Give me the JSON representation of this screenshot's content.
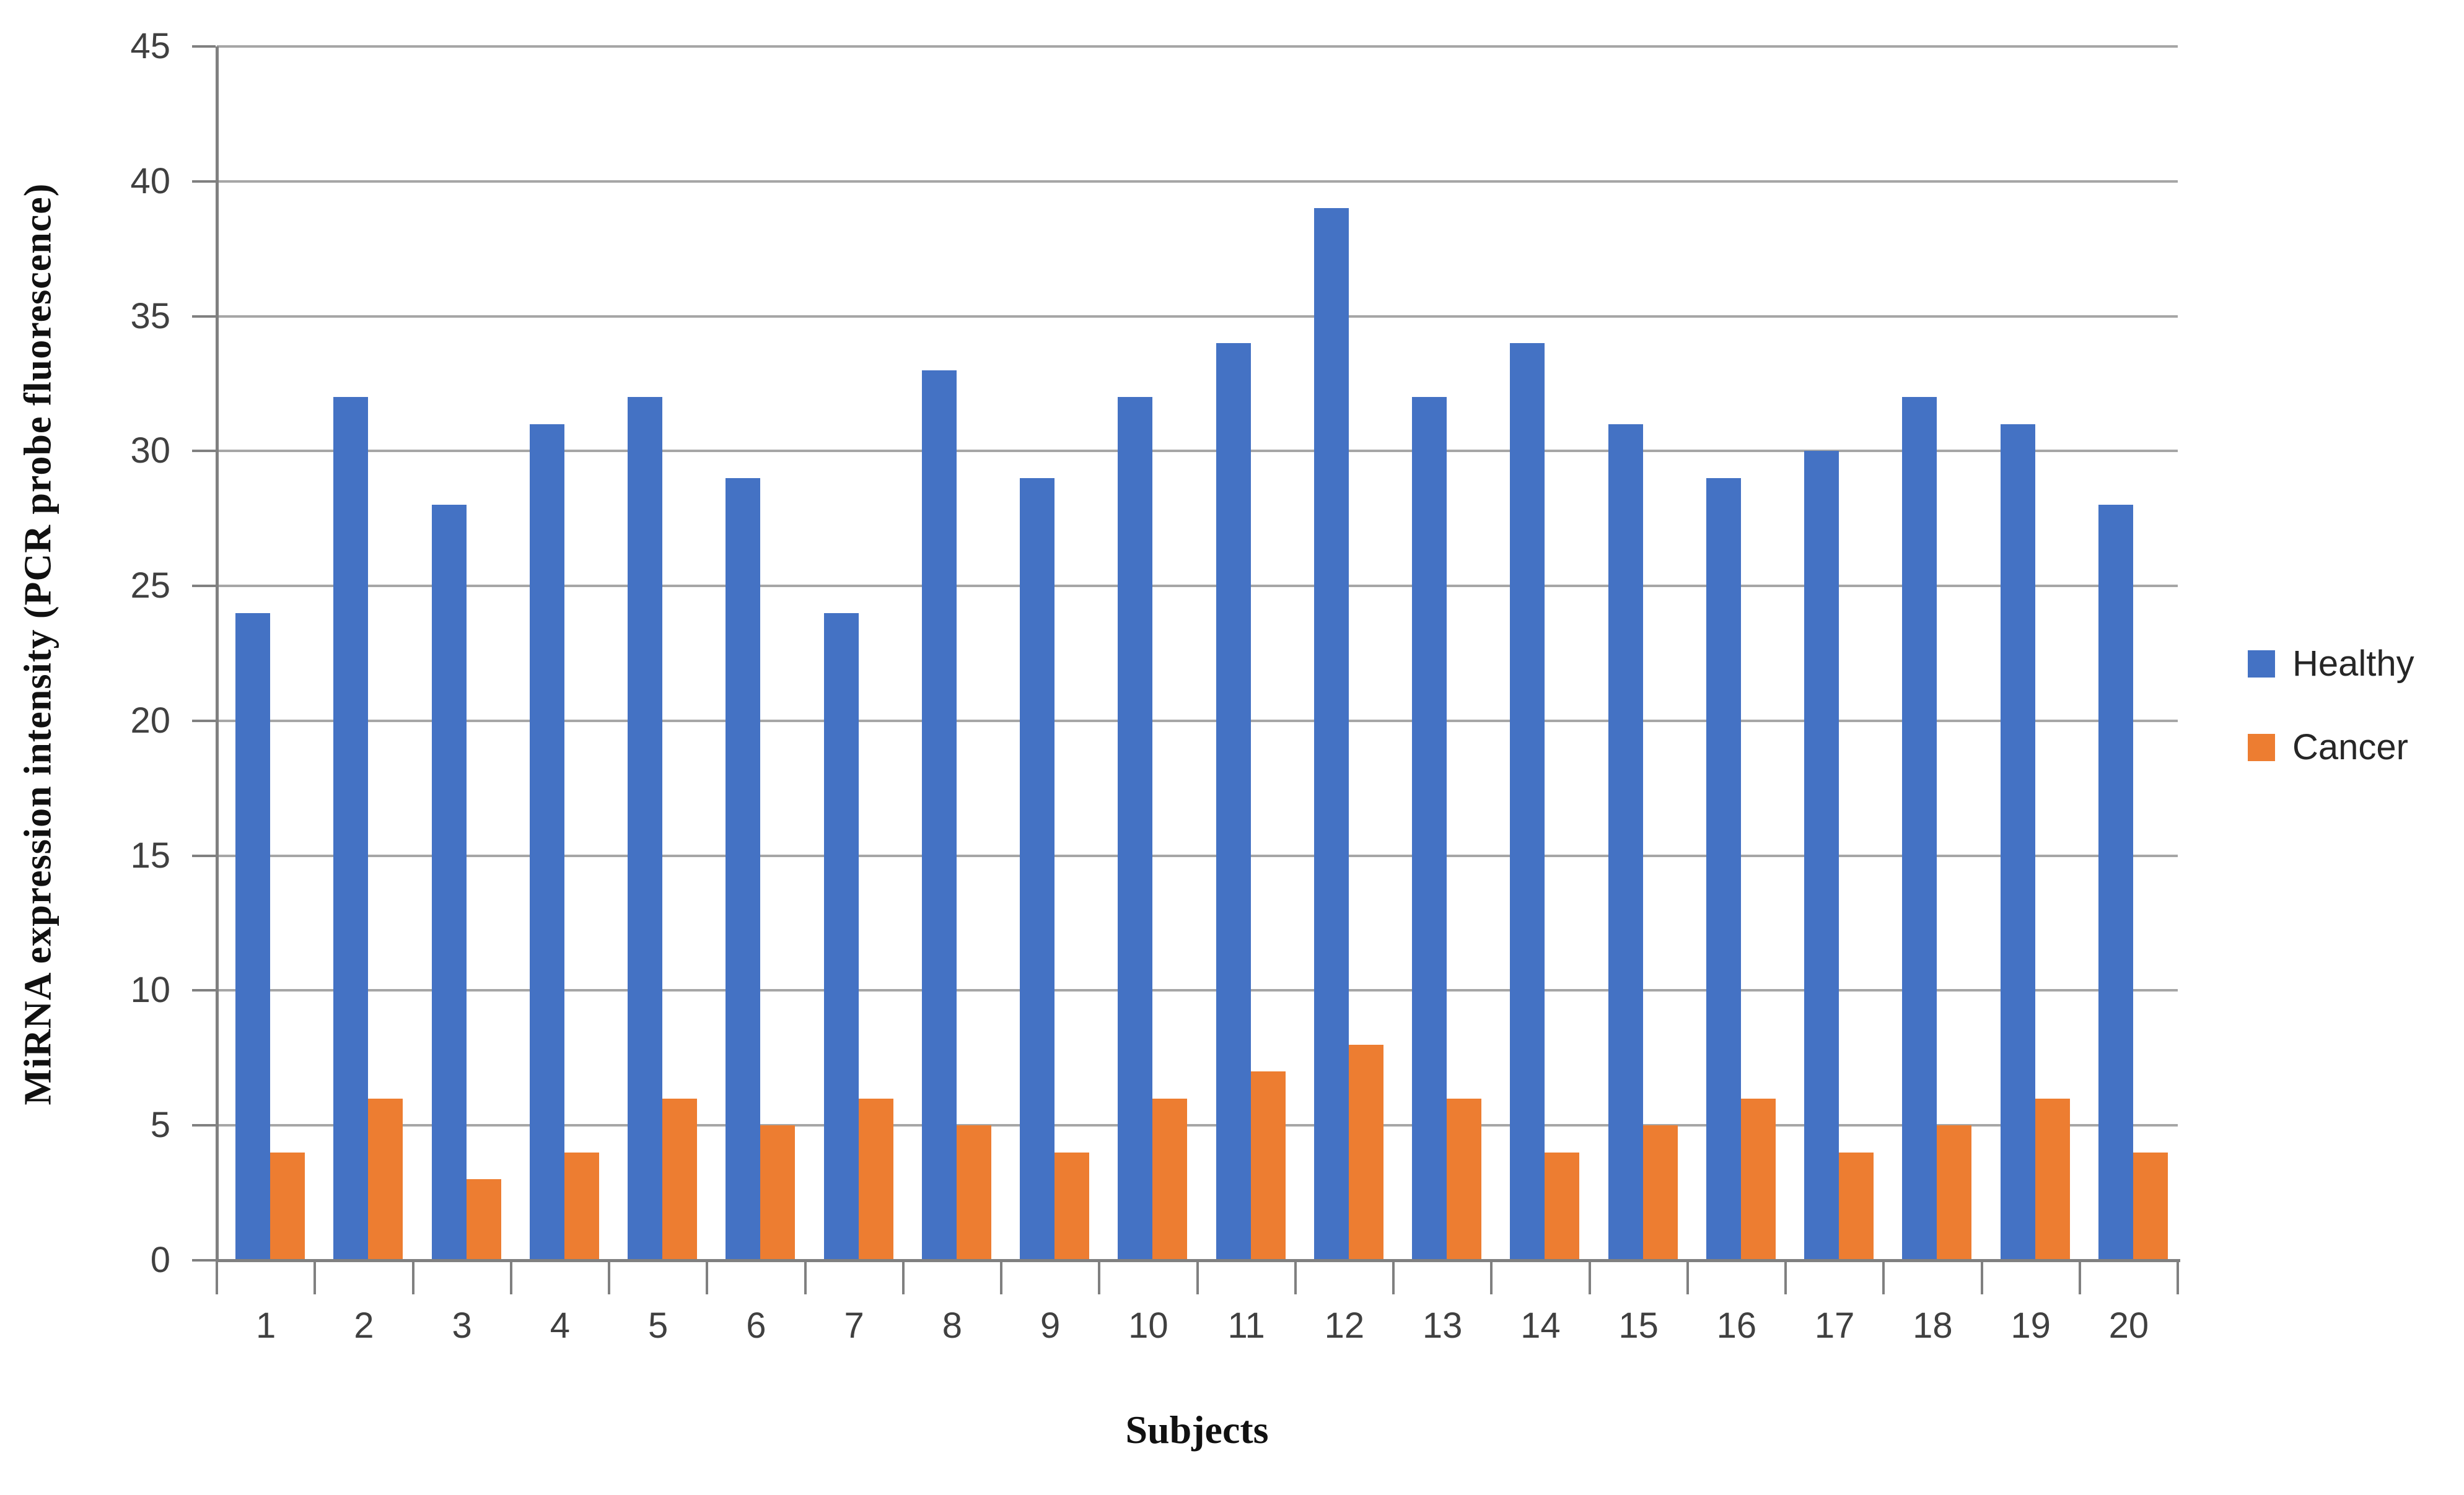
{
  "figure": {
    "ylabel": "MiRNA expression intensity (PCR probe fluorescence)",
    "xlabel": "Subjects"
  },
  "chart_data": {
    "type": "bar",
    "title": "",
    "categories": [
      "1",
      "2",
      "3",
      "4",
      "5",
      "6",
      "7",
      "8",
      "9",
      "10",
      "11",
      "12",
      "13",
      "14",
      "15",
      "16",
      "17",
      "18",
      "19",
      "20"
    ],
    "series": [
      {
        "name": "Healthy",
        "color": "#4472C4",
        "values": [
          24,
          32,
          28,
          31,
          32,
          29,
          24,
          33,
          29,
          32,
          34,
          39,
          32,
          34,
          31,
          29,
          30,
          32,
          31,
          28
        ]
      },
      {
        "name": "Cancer",
        "color": "#ED7D31",
        "values": [
          4,
          6,
          3,
          4,
          6,
          5,
          6,
          5,
          4,
          6,
          7,
          8,
          6,
          4,
          5,
          6,
          4,
          5,
          6,
          4
        ]
      }
    ],
    "xlabel": "Subjects",
    "ylabel": "MiRNA expression intensity (PCR probe fluorescence)",
    "ylim": [
      0,
      45
    ],
    "ytick_step": 5,
    "yticks": [
      "45",
      "40",
      "35",
      "30",
      "25",
      "20",
      "15",
      "10",
      "5",
      "0"
    ],
    "grid": "horizontal",
    "legend_position": "right",
    "style": {
      "gridline_color": "#A6A6A6",
      "axis_color": "#808080",
      "tick_label_color": "#404040",
      "background": "#FFFFFF"
    }
  }
}
